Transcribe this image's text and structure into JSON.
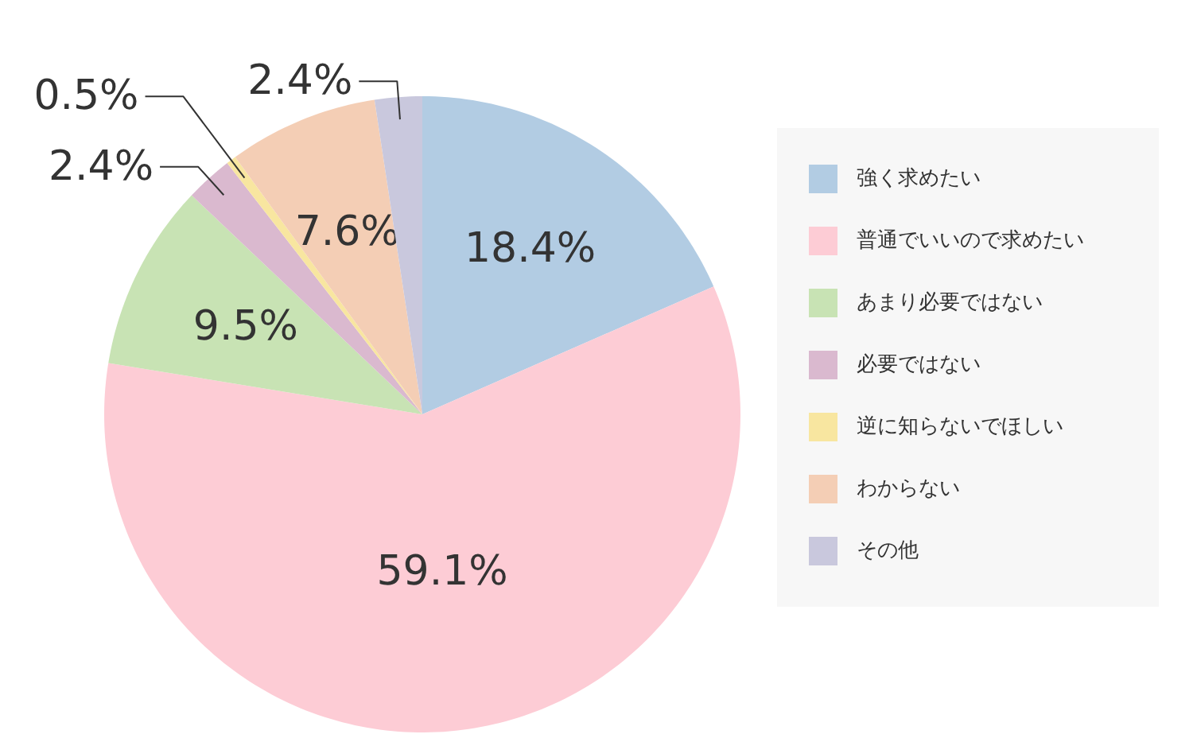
{
  "chart_data": {
    "type": "pie",
    "categories": [
      "強く求めたい",
      "普通でいいので求めたい",
      "あまり必要ではない",
      "必要ではない",
      "逆に知らないでほしい",
      "わからない",
      "その他"
    ],
    "values": [
      18.4,
      59.1,
      9.5,
      2.4,
      0.5,
      7.6,
      2.4
    ],
    "colors": [
      "#b2cce3",
      "#fdccd5",
      "#c8e3b4",
      "#dab9cf",
      "#f8e6a0",
      "#f4ceb5",
      "#c9c8dd"
    ],
    "value_labels": [
      "18.4%",
      "59.1%",
      "9.5%",
      "2.4%",
      "0.5%",
      "7.6%",
      "2.4%"
    ],
    "legend": "right"
  }
}
